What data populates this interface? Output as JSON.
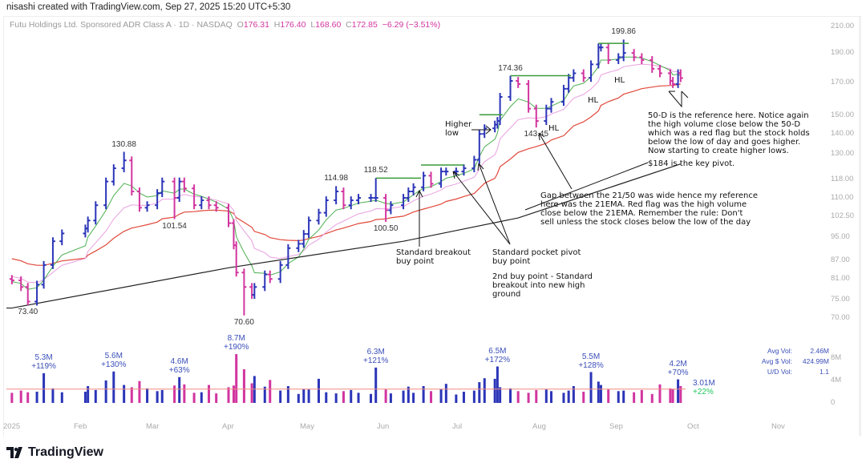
{
  "header": {
    "credit": "nisashi created with TradingView.com, Sep 27, 2025 15:20 UTC+5:30"
  },
  "legend": {
    "symbol": "Futu Holdings Ltd. Sponsored ADR Class A · 1D · NASDAQ",
    "o_label": "O",
    "o": "176.31",
    "h_label": "H",
    "h": "176.40",
    "l_label": "L",
    "l": "168.60",
    "c_label": "C",
    "c": "172.85",
    "change": "−6.29 (−3.51%)"
  },
  "stats": {
    "avg_vol_label": "Avg Vol:",
    "avg_vol": "2.46M",
    "avg_dollar_vol_label": "Avg $ Vol:",
    "avg_dollar_vol": "424.99M",
    "ud_vol_label": "U/D Vol:",
    "ud_vol": "1.1"
  },
  "last_volume": {
    "value": "3.01M",
    "pct": "+22%"
  },
  "annotations": {
    "higher_low": "Higher\nlow",
    "hl_1": "HL",
    "hl_2": "HL",
    "hl_3": "HL",
    "fifty_d": "50-D is the reference here. Notice again\nthe high volume close below the 50-D\nwhich was a red flag but the stock holds\nbelow the low of day and goes higher.\nNow starting to create higher lows.",
    "key_pivot": "$184 is the key pivot.",
    "gap": "Gap between the 21/50 was wide hence my reference\nhere was the 21EMA. Red flag was the high volume\nclose below the 21EMA. Remember the rule: Don't\nsell unless the stock closes below the low of the day",
    "breakout": "Standard breakout\nbuy point",
    "pocket_pivot": "Standard pocket pivot\nbuy point",
    "second_buy": "2nd buy point - Standard\nbreakout into new high\nground"
  },
  "footer": {
    "logo_text": "TradingView"
  },
  "colors": {
    "up": "#2b35b8",
    "down": "#d2359f",
    "ma10": "#4caf50",
    "ma21": "#e8a0e0",
    "ma50": "#e0483a",
    "ma200": "#222222",
    "pivot_line": "#3a9a3a",
    "vol_ma": "#f08a80"
  },
  "chart_data": {
    "type": "ohlc-bar",
    "scale": "log",
    "ylim": [
      70,
      210
    ],
    "price_ticks": [
      "210.00",
      "190.00",
      "170.00",
      "150.00",
      "140.00",
      "130.00",
      "118.00",
      "110.00",
      "102.50",
      "95.00",
      "87.00",
      "81.00",
      "75.00",
      "70.00"
    ],
    "volume_ticks": [
      "8M",
      "4M",
      "0"
    ],
    "x_ticks": [
      "2025",
      "Feb",
      "Mar",
      "Apr",
      "May",
      "Jun",
      "Jul",
      "Aug",
      "Sep",
      "Oct",
      "Nov"
    ],
    "first_open": 81.0,
    "ma_start": {
      "ma10": 80,
      "ma21": 82,
      "ma50": 88
    },
    "bars": [
      [
        "2025-01-02",
        80.6,
        1.8
      ],
      [
        "2025-01-06",
        78.6,
        2.2
      ],
      [
        "2025-01-09",
        74.4,
        1.9
      ],
      [
        "2025-01-13",
        79.3,
        2.0
      ],
      [
        "2025-01-16",
        85.4,
        5.3
      ],
      [
        "2025-01-20",
        93.4,
        2.6
      ],
      [
        "2025-01-24",
        96.2,
        1.9
      ],
      [
        "2025-02-03",
        98.0,
        2.0
      ],
      [
        "2025-02-04",
        101.0,
        3.0
      ],
      [
        "2025-02-07",
        107.0,
        2.3
      ],
      [
        "2025-02-11",
        117.0,
        4.0
      ],
      [
        "2025-02-14",
        123.0,
        5.6
      ],
      [
        "2025-02-18",
        126.7,
        3.2
      ],
      [
        "2025-02-21",
        112.7,
        2.8
      ],
      [
        "2025-02-24",
        106.0,
        3.9
      ],
      [
        "2025-02-27",
        107.0,
        2.6
      ],
      [
        "2025-03-03",
        112.0,
        2.1
      ],
      [
        "2025-03-05",
        117.0,
        2.3
      ],
      [
        "2025-03-10",
        110.0,
        3.1
      ],
      [
        "2025-03-12",
        117.0,
        4.6
      ],
      [
        "2025-03-14",
        114.0,
        3.3
      ],
      [
        "2025-03-18",
        107.0,
        1.8
      ],
      [
        "2025-03-21",
        109.0,
        1.9
      ],
      [
        "2025-03-24",
        107.0,
        3.2
      ],
      [
        "2025-03-27",
        106.0,
        1.7
      ],
      [
        "2025-04-01",
        100.0,
        2.8
      ],
      [
        "2025-04-03",
        92.0,
        3.1
      ],
      [
        "2025-04-04",
        83.0,
        8.7
      ],
      [
        "2025-04-07",
        78.6,
        6.0
      ],
      [
        "2025-04-10",
        76.3,
        3.5
      ],
      [
        "2025-04-11",
        78.6,
        4.8
      ],
      [
        "2025-04-15",
        82.4,
        2.9
      ],
      [
        "2025-04-17",
        81.0,
        4.1
      ],
      [
        "2025-04-21",
        85.4,
        2.2
      ],
      [
        "2025-04-24",
        91.0,
        3.0
      ],
      [
        "2025-04-28",
        92.5,
        1.6
      ],
      [
        "2025-04-30",
        96.0,
        2.5
      ],
      [
        "2025-05-02",
        101.0,
        2.4
      ],
      [
        "2025-05-06",
        104.0,
        4.3
      ],
      [
        "2025-05-09",
        109.0,
        1.9
      ],
      [
        "2025-05-13",
        112.7,
        1.7
      ],
      [
        "2025-05-16",
        107.0,
        2.1
      ],
      [
        "2025-05-19",
        109.0,
        2.3
      ],
      [
        "2025-05-22",
        110.0,
        1.8
      ],
      [
        "2025-05-27",
        110.0,
        1.6
      ],
      [
        "2025-05-29",
        110.0,
        6.3
      ],
      [
        "2025-06-02",
        105.0,
        2.4
      ],
      [
        "2025-06-04",
        107.0,
        1.7
      ],
      [
        "2025-06-09",
        110.0,
        2.2
      ],
      [
        "2025-06-11",
        112.7,
        2.9
      ],
      [
        "2025-06-13",
        114.5,
        1.8
      ],
      [
        "2025-06-17",
        119.6,
        3.0
      ],
      [
        "2025-06-20",
        116.0,
        2.1
      ],
      [
        "2025-06-24",
        121.5,
        2.5
      ],
      [
        "2025-06-26",
        121.5,
        3.4
      ],
      [
        "2025-06-30",
        121.5,
        1.5
      ],
      [
        "2025-07-03",
        123.0,
        2.0
      ],
      [
        "2025-07-07",
        127.0,
        2.2
      ],
      [
        "2025-07-09",
        140.0,
        3.7
      ],
      [
        "2025-07-11",
        143.0,
        4.4
      ],
      [
        "2025-07-15",
        145.0,
        4.3
      ],
      [
        "2025-07-16",
        147.0,
        6.5
      ],
      [
        "2025-07-17",
        161.0,
        2.8
      ],
      [
        "2025-07-21",
        171.0,
        2.6
      ],
      [
        "2025-07-24",
        169.0,
        2.1
      ],
      [
        "2025-07-28",
        154.0,
        1.8
      ],
      [
        "2025-07-31",
        147.0,
        2.3
      ],
      [
        "2025-08-04",
        154.0,
        2.4
      ],
      [
        "2025-08-06",
        158.0,
        2.1
      ],
      [
        "2025-08-11",
        166.0,
        1.8
      ],
      [
        "2025-08-13",
        173.0,
        2.2
      ],
      [
        "2025-08-15",
        176.0,
        3.0
      ],
      [
        "2025-08-19",
        173.0,
        2.0
      ],
      [
        "2025-08-22",
        182.0,
        5.5
      ],
      [
        "2025-08-25",
        194.0,
        3.8
      ],
      [
        "2025-08-26",
        194.0,
        3.2
      ],
      [
        "2025-08-29",
        185.0,
        2.4
      ],
      [
        "2025-09-02",
        187.0,
        2.1
      ],
      [
        "2025-09-04",
        190.0,
        2.2
      ],
      [
        "2025-09-08",
        187.0,
        1.9
      ],
      [
        "2025-09-11",
        185.0,
        2.3
      ],
      [
        "2025-09-15",
        179.0,
        1.6
      ],
      [
        "2025-09-18",
        176.0,
        3.3
      ],
      [
        "2025-09-22",
        171.0,
        2.6
      ],
      [
        "2025-09-23",
        169.0,
        2.5
      ],
      [
        "2025-09-25",
        176.0,
        4.2
      ],
      [
        "2025-09-26",
        172.85,
        3.01
      ]
    ],
    "ma200": [
      [
        "2025-01-02",
        72.6
      ],
      [
        "2025-04-01",
        84.5
      ],
      [
        "2025-06-09",
        93.4
      ],
      [
        "2025-07-24",
        102.0
      ],
      [
        "2025-09-26",
        125.0
      ]
    ],
    "volume_ma": 2.46,
    "price_labels": [
      {
        "date": "2025-01-09",
        "value": "73.40",
        "type": "low"
      },
      {
        "date": "2025-02-18",
        "value": "130.88",
        "type": "high"
      },
      {
        "date": "2025-03-10",
        "value": "101.54",
        "type": "low"
      },
      {
        "date": "2025-04-07",
        "value": "70.60",
        "type": "low"
      },
      {
        "date": "2025-05-13",
        "value": "114.98",
        "type": "high"
      },
      {
        "date": "2025-05-29",
        "value": "118.52",
        "type": "high"
      },
      {
        "date": "2025-06-02",
        "value": "100.50",
        "type": "low"
      },
      {
        "date": "2025-07-21",
        "value": "174.36",
        "type": "high"
      },
      {
        "date": "2025-07-31",
        "value": "143.45",
        "type": "low"
      },
      {
        "date": "2025-09-04",
        "value": "199.86",
        "type": "high"
      }
    ],
    "pivot_lines": [
      {
        "from": "2025-05-29",
        "to": "2025-06-16",
        "price": 118.52
      },
      {
        "from": "2025-06-16",
        "to": "2025-07-03",
        "price": 124.5
      },
      {
        "from": "2025-07-09",
        "to": "2025-07-18",
        "price": 150.5
      },
      {
        "from": "2025-07-21",
        "to": "2025-08-14",
        "price": 174.36
      },
      {
        "from": "2025-08-25",
        "to": "2025-09-06",
        "price": 197.0
      }
    ],
    "volume_labels": [
      {
        "date": "2025-01-16",
        "value": "5.3M",
        "pct": "+119%"
      },
      {
        "date": "2025-02-14",
        "value": "5.6M",
        "pct": "+130%"
      },
      {
        "date": "2025-03-12",
        "value": "4.6M",
        "pct": "+63%"
      },
      {
        "date": "2025-04-04",
        "value": "8.7M",
        "pct": "+190%"
      },
      {
        "date": "2025-05-29",
        "value": "6.3M",
        "pct": "+121%"
      },
      {
        "date": "2025-07-16",
        "value": "6.5M",
        "pct": "+172%"
      },
      {
        "date": "2025-08-22",
        "value": "5.5M",
        "pct": "+128%"
      },
      {
        "date": "2025-09-25",
        "value": "4.2M",
        "pct": "+70%"
      }
    ]
  }
}
